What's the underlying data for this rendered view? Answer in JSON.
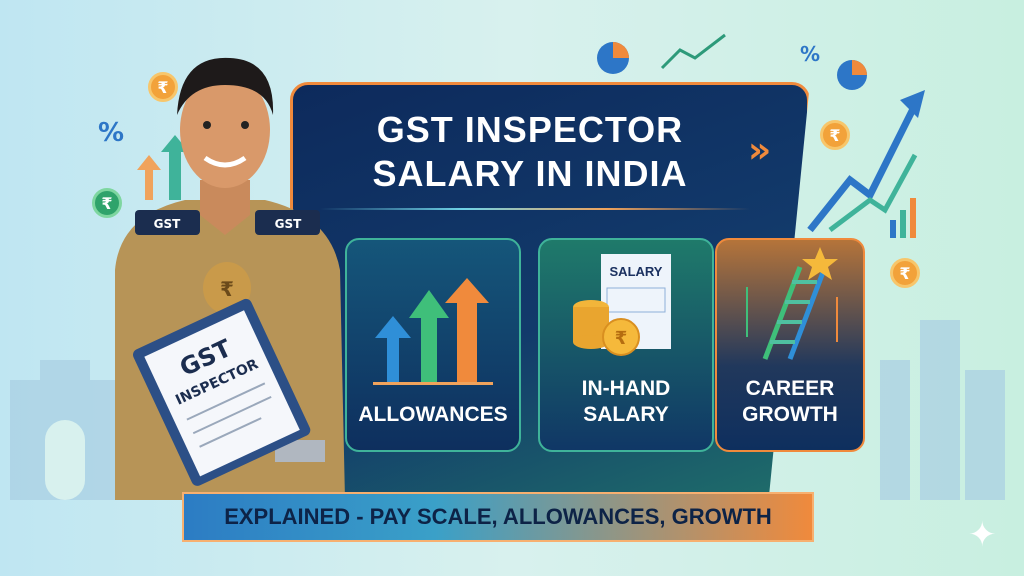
{
  "title_line1": "GST INSPECTOR",
  "title_line2": "SALARY IN INDIA",
  "cards": [
    {
      "label": "ALLOWANCES",
      "icon": "rising-arrows-icon"
    },
    {
      "label_line1": "IN-HAND",
      "label_line2": "SALARY",
      "icon": "salary-slip-coins-icon",
      "slip_text": "SALARY"
    },
    {
      "label_line1": "CAREER",
      "label_line2": "GROWTH",
      "icon": "ladder-star-icon"
    }
  ],
  "banner": "EXPLAINED - PAY SCALE, ALLOWANCES, GROWTH",
  "figure": {
    "shoulder_badge": "GST",
    "clipboard_line1": "GST",
    "clipboard_line2": "INSPECTOR"
  },
  "decor": {
    "currency": "₹",
    "percent": "%"
  },
  "colors": {
    "panel": "#0d2a5c",
    "accent": "#f08a3c",
    "green": "#3fb39a",
    "blue": "#2d76c7"
  }
}
